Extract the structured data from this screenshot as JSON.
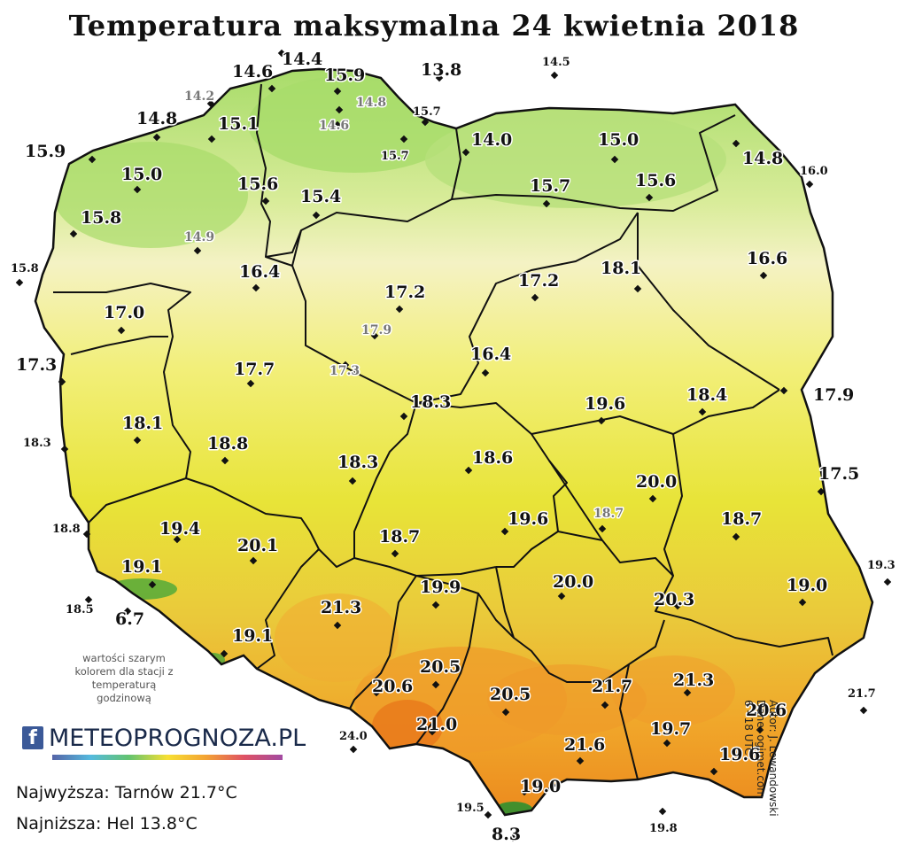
{
  "title": "Temperatura maksymalna 24 kwietnia 2018",
  "note": "wartości szarym kolorem dla stacji z temperaturą godzinową",
  "logo_text": "METEOPROGNOZA.PL",
  "logo_icon": "facebook-icon",
  "stats": {
    "max": "Najwyższa: Tarnów 21.7°C",
    "min": "Najniższa: Hel 13.8°C"
  },
  "credits": {
    "author": "Autor: J. Lewandowski",
    "data": "Dane: ogimet.com",
    "hours": "6 - 18 UTC"
  },
  "colors": {
    "cool_green": "#a8dc6a",
    "pale": "#f4f2c4",
    "light_yellow": "#f2ef7a",
    "yellow": "#e8e438",
    "orange": "#f0a62a",
    "hot_orange": "#ec8a1e",
    "mountain_green": "#4aa83a",
    "border": "#111111"
  },
  "stations": [
    {
      "v": "14.4",
      "style": "big"
    },
    {
      "v": "14.6",
      "style": "big"
    },
    {
      "v": "15.9",
      "style": "big"
    },
    {
      "v": "13.8",
      "style": "big"
    },
    {
      "v": "14.5",
      "style": "small"
    },
    {
      "v": "14.2",
      "style": "gray"
    },
    {
      "v": "14.8",
      "style": "gray"
    },
    {
      "v": "14.6",
      "style": "gray"
    },
    {
      "v": "15.7",
      "style": "small"
    },
    {
      "v": "15.7",
      "style": "small"
    },
    {
      "v": "14.8",
      "style": "big"
    },
    {
      "v": "15.1",
      "style": "big"
    },
    {
      "v": "14.0",
      "style": "big"
    },
    {
      "v": "15.0",
      "style": "big"
    },
    {
      "v": "14.8",
      "style": "big"
    },
    {
      "v": "16.0",
      "style": "small"
    },
    {
      "v": "15.9",
      "style": "big"
    },
    {
      "v": "15.0",
      "style": "big"
    },
    {
      "v": "15.6",
      "style": "big"
    },
    {
      "v": "15.4",
      "style": "big"
    },
    {
      "v": "15.7",
      "style": "big"
    },
    {
      "v": "15.6",
      "style": "big"
    },
    {
      "v": "15.8",
      "style": "big"
    },
    {
      "v": "14.9",
      "style": "gray"
    },
    {
      "v": "16.4",
      "style": "big"
    },
    {
      "v": "15.8",
      "style": "small"
    },
    {
      "v": "16.6",
      "style": "big"
    },
    {
      "v": "17.2",
      "style": "big"
    },
    {
      "v": "17.2",
      "style": "big"
    },
    {
      "v": "18.1",
      "style": "big"
    },
    {
      "v": "17.0",
      "style": "big"
    },
    {
      "v": "17.9",
      "style": "gray"
    },
    {
      "v": "17.3",
      "style": "big"
    },
    {
      "v": "17.7",
      "style": "big"
    },
    {
      "v": "17.3",
      "style": "gray"
    },
    {
      "v": "16.4",
      "style": "big"
    },
    {
      "v": "18.3",
      "style": "big"
    },
    {
      "v": "19.6",
      "style": "big"
    },
    {
      "v": "18.4",
      "style": "big"
    },
    {
      "v": "17.9",
      "style": "big"
    },
    {
      "v": "18.1",
      "style": "big"
    },
    {
      "v": "18.3",
      "style": "small"
    },
    {
      "v": "18.8",
      "style": "big"
    },
    {
      "v": "18.3",
      "style": "big"
    },
    {
      "v": "18.6",
      "style": "big"
    },
    {
      "v": "20.0",
      "style": "big"
    },
    {
      "v": "17.5",
      "style": "big"
    },
    {
      "v": "18.8",
      "style": "small"
    },
    {
      "v": "19.4",
      "style": "big"
    },
    {
      "v": "20.1",
      "style": "big"
    },
    {
      "v": "19.6",
      "style": "big"
    },
    {
      "v": "18.7",
      "style": "gray"
    },
    {
      "v": "18.7",
      "style": "big"
    },
    {
      "v": "18.7",
      "style": "big"
    },
    {
      "v": "19.3",
      "style": "small"
    },
    {
      "v": "19.1",
      "style": "big"
    },
    {
      "v": "20.0",
      "style": "big"
    },
    {
      "v": "19.0",
      "style": "big"
    },
    {
      "v": "18.5",
      "style": "small"
    },
    {
      "v": "6.7",
      "style": "big"
    },
    {
      "v": "21.3",
      "style": "big"
    },
    {
      "v": "19.9",
      "style": "big"
    },
    {
      "v": "20.3",
      "style": "big"
    },
    {
      "v": "19.1",
      "style": "big"
    },
    {
      "v": "20.5",
      "style": "big"
    },
    {
      "v": "20.6",
      "style": "big"
    },
    {
      "v": "20.5",
      "style": "big"
    },
    {
      "v": "21.7",
      "style": "big"
    },
    {
      "v": "21.3",
      "style": "big"
    },
    {
      "v": "21.7",
      "style": "small"
    },
    {
      "v": "21.0",
      "style": "big"
    },
    {
      "v": "20.6",
      "style": "big"
    },
    {
      "v": "24.0",
      "style": "small"
    },
    {
      "v": "21.6",
      "style": "big"
    },
    {
      "v": "19.7",
      "style": "big"
    },
    {
      "v": "19.6",
      "style": "big"
    },
    {
      "v": "19.0",
      "style": "big"
    },
    {
      "v": "19.5",
      "style": "small"
    },
    {
      "v": "8.3",
      "style": "big"
    },
    {
      "v": "19.8",
      "style": "small"
    }
  ]
}
